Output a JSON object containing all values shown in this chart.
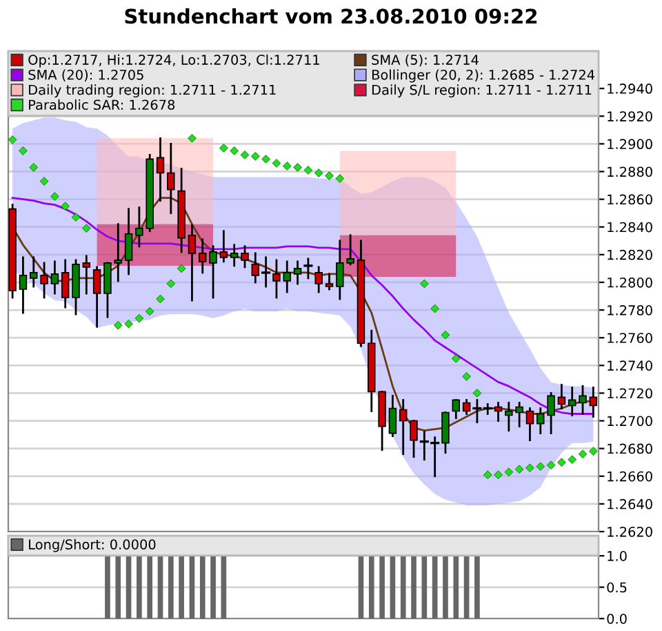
{
  "chart_data": [
    {
      "type": "candlestick",
      "title": "Stundenchart vom 23.08.2010 09:22",
      "categories": [
        null,
        null,
        null,
        null,
        null,
        null,
        null,
        null,
        null,
        null,
        null,
        null,
        null,
        null,
        null,
        null,
        null,
        null,
        null,
        null,
        null,
        null,
        null,
        null,
        null,
        null,
        null,
        null,
        null,
        null,
        null,
        null,
        null,
        null,
        null,
        null,
        null,
        null,
        null,
        null,
        null,
        null,
        null,
        null,
        null,
        null,
        null,
        null,
        null,
        null,
        null,
        null,
        null,
        null,
        null,
        null
      ],
      "series": [
        {
          "type": "candlestick",
          "name": "Op:1.2717, Hi:1.2724, Lo:1.2703, Cl:1.2711",
          "color": "#cc0000",
          "colors": [
            "#cc0000",
            "#008000",
            "#008000",
            "#cc0000",
            "#008000",
            "#cc0000",
            "#008000",
            "#cc0000",
            "#cc0000",
            "#008000",
            "#008000",
            "#008000",
            "#008000",
            "#008000",
            "#cc0000",
            "#cc0000",
            "#cc0000",
            "#cc0000",
            "#cc0000",
            "#008000",
            "#cc0000",
            "#008000",
            "#cc0000",
            "#cc0000",
            "#000000",
            "#cc0000",
            "#008000",
            "#008000",
            "#000000",
            "#cc0000",
            "#cc0000",
            "#008000",
            "#008000",
            "#cc0000",
            "#cc0000",
            "#cc0000",
            "#008000",
            "#cc0000",
            "#cc0000",
            "#000000",
            "#000000",
            "#008000",
            "#008000",
            "#cc0000",
            "#000000",
            "#000000",
            "#cc0000",
            "#008000",
            "#008000",
            "#cc0000",
            "#008000",
            "#008000",
            "#cc0000",
            "#008000",
            "#008000",
            "#cc0000"
          ],
          "ohlc": [
            [
              1.2853,
              1.2856,
              1.2789,
              1.2794
            ],
            [
              1.2795,
              1.2818,
              1.2778,
              1.2805
            ],
            [
              1.2803,
              1.2818,
              1.2797,
              1.2807
            ],
            [
              1.2805,
              1.2814,
              1.2789,
              1.2799
            ],
            [
              1.2799,
              1.2815,
              1.2792,
              1.2806
            ],
            [
              1.2807,
              1.2816,
              1.2782,
              1.2789
            ],
            [
              1.2789,
              1.2816,
              1.2777,
              1.2813
            ],
            [
              1.2814,
              1.2819,
              1.2792,
              1.2811
            ],
            [
              1.2809,
              1.2811,
              1.2768,
              1.2792
            ],
            [
              1.2792,
              1.2814,
              1.2775,
              1.2814
            ],
            [
              1.2814,
              1.2842,
              1.2801,
              1.2816
            ],
            [
              1.2816,
              1.2853,
              1.2806,
              1.2835
            ],
            [
              1.2834,
              1.2854,
              1.2826,
              1.2839
            ],
            [
              1.2839,
              1.2892,
              1.2837,
              1.2889
            ],
            [
              1.289,
              1.2904,
              1.2859,
              1.2879
            ],
            [
              1.2879,
              1.29,
              1.285,
              1.2867
            ],
            [
              1.2866,
              1.2882,
              1.2822,
              1.2832
            ],
            [
              1.2834,
              1.2841,
              1.2787,
              1.2821
            ],
            [
              1.2821,
              1.2831,
              1.2807,
              1.2815
            ],
            [
              1.2814,
              1.2826,
              1.2789,
              1.2822
            ],
            [
              1.2822,
              1.2837,
              1.2815,
              1.2818
            ],
            [
              1.2818,
              1.2827,
              1.2812,
              1.2821
            ],
            [
              1.2821,
              1.2826,
              1.2811,
              1.2816
            ],
            [
              1.2813,
              1.2821,
              1.28,
              1.2805
            ],
            [
              1.2807,
              1.2818,
              1.2797,
              1.2807
            ],
            [
              1.2806,
              1.2816,
              1.2789,
              1.2801
            ],
            [
              1.2801,
              1.2815,
              1.2793,
              1.2807
            ],
            [
              1.2806,
              1.2815,
              1.2799,
              1.281
            ],
            [
              1.2812,
              1.2817,
              1.2803,
              1.2812
            ],
            [
              1.2807,
              1.2811,
              1.2793,
              1.2799
            ],
            [
              1.2799,
              1.2806,
              1.2795,
              1.2797
            ],
            [
              1.2797,
              1.283,
              1.2788,
              1.2814
            ],
            [
              1.2814,
              1.2834,
              1.2813,
              1.2817
            ],
            [
              1.2816,
              1.283,
              1.2754,
              1.2756
            ],
            [
              1.2756,
              1.2765,
              1.2707,
              1.2721
            ],
            [
              1.2721,
              1.2721,
              1.2679,
              1.2696
            ],
            [
              1.2691,
              1.2718,
              1.2689,
              1.2709
            ],
            [
              1.2708,
              1.2715,
              1.2676,
              1.27
            ],
            [
              1.27,
              1.27,
              1.2674,
              1.2686
            ],
            [
              1.2685,
              1.2692,
              1.2672,
              1.2685
            ],
            [
              1.2684,
              1.2688,
              1.266,
              1.2684
            ],
            [
              1.2684,
              1.2706,
              1.2677,
              1.2706
            ],
            [
              1.2707,
              1.2715,
              1.2702,
              1.2715
            ],
            [
              1.2713,
              1.2715,
              1.2705,
              1.2707
            ],
            [
              1.2709,
              1.2715,
              1.2699,
              1.2709
            ],
            [
              1.2709,
              1.2712,
              1.2705,
              1.2709
            ],
            [
              1.271,
              1.2713,
              1.27,
              1.2707
            ],
            [
              1.2704,
              1.2713,
              1.2693,
              1.2707
            ],
            [
              1.2706,
              1.2713,
              1.2696,
              1.271
            ],
            [
              1.2707,
              1.2709,
              1.2686,
              1.2698
            ],
            [
              1.2698,
              1.2709,
              1.2691,
              1.2705
            ],
            [
              1.2704,
              1.272,
              1.2691,
              1.2718
            ],
            [
              1.2717,
              1.2726,
              1.2709,
              1.2712
            ],
            [
              1.2711,
              1.2724,
              1.2704,
              1.2715
            ],
            [
              1.2713,
              1.2725,
              1.2705,
              1.2718
            ],
            [
              1.2717,
              1.2724,
              1.2703,
              1.2711
            ]
          ]
        },
        {
          "type": "line",
          "name": "SMA (5): 1.2714",
          "color": "#6b3a12",
          "values": [
            1.284,
            1.2827,
            1.2817,
            1.2807,
            1.2801,
            1.2801,
            1.2803,
            1.2803,
            1.2803,
            1.2807,
            1.2812,
            1.2824,
            1.2836,
            1.2851,
            1.2861,
            1.2861,
            1.2857,
            1.2842,
            1.2829,
            1.2822,
            1.282,
            1.2819,
            1.2817,
            1.2814,
            1.2811,
            1.2807,
            1.2807,
            1.2807,
            1.2807,
            1.2805,
            1.2806,
            1.2806,
            1.2805,
            1.2793,
            1.2778,
            1.2752,
            1.2725,
            1.2705,
            1.2695,
            1.2693,
            1.2694,
            1.2695,
            1.2699,
            1.2703,
            1.2707,
            1.2709,
            1.2709,
            1.2708,
            1.2707,
            1.2705,
            1.2705,
            1.2707,
            1.2709,
            1.2712,
            1.2714,
            1.2714
          ]
        },
        {
          "type": "line",
          "name": "SMA (20): 1.2705",
          "color": "#9900ee",
          "values": [
            1.2861,
            1.286,
            1.2859,
            1.2857,
            1.2856,
            1.2853,
            1.2849,
            1.2844,
            1.2838,
            1.2833,
            1.283,
            1.2829,
            1.2828,
            1.2828,
            1.2828,
            1.2828,
            1.2827,
            1.2826,
            1.2825,
            1.2824,
            1.2824,
            1.2824,
            1.2825,
            1.2825,
            1.2825,
            1.2825,
            1.2826,
            1.2826,
            1.2826,
            1.2825,
            1.2825,
            1.2824,
            1.2824,
            1.2815,
            1.2805,
            1.2798,
            1.279,
            1.2781,
            1.2773,
            1.2766,
            1.2758,
            1.2753,
            1.2748,
            1.2743,
            1.2738,
            1.2733,
            1.2728,
            1.2725,
            1.2721,
            1.2717,
            1.2712,
            1.2708,
            1.2706,
            1.2705,
            1.2705,
            1.2705
          ]
        },
        {
          "type": "line",
          "name": "Bollinger (20, 2): 1.2685 - 1.2724",
          "color": "#aaaaff",
          "values": [
            null,
            null,
            null,
            null,
            null,
            null,
            null,
            null,
            null,
            null,
            null,
            null,
            null,
            null,
            null,
            null,
            null,
            null,
            null,
            null,
            null,
            null,
            null,
            null,
            null,
            null,
            null,
            null,
            null,
            null,
            null,
            null,
            null,
            null,
            null,
            null,
            null,
            null,
            null,
            null,
            null,
            null,
            null,
            null,
            null,
            null,
            null,
            null,
            null,
            null,
            null,
            null,
            null,
            null,
            null,
            null
          ],
          "upper": [
            1.2911,
            1.2915,
            1.2917,
            1.2919,
            1.2919,
            1.2917,
            1.2916,
            1.2912,
            1.2911,
            1.2906,
            1.2898,
            1.2891,
            1.2891,
            1.2887,
            1.2887,
            1.2885,
            1.2882,
            1.288,
            1.2878,
            1.2876,
            1.2876,
            1.2876,
            1.2876,
            1.2876,
            1.2876,
            1.2876,
            1.2876,
            1.2876,
            1.2876,
            1.2875,
            1.2875,
            1.2875,
            1.2869,
            1.2864,
            1.2865,
            1.2869,
            1.2873,
            1.2876,
            1.2876,
            1.2876,
            1.2873,
            1.2868,
            1.2858,
            1.2846,
            1.2833,
            1.2815,
            1.2796,
            1.2778,
            1.2765,
            1.2752,
            1.2738,
            1.2728,
            1.2726,
            1.2725,
            1.2725,
            1.2724
          ],
          "lower": [
            1.2809,
            1.2804,
            1.2799,
            1.2792,
            1.2787,
            1.2786,
            1.278,
            1.2775,
            1.2767,
            1.2769,
            1.277,
            1.2771,
            1.2772,
            1.2773,
            1.2776,
            1.2777,
            1.2777,
            1.2777,
            1.2776,
            1.2774,
            1.2776,
            1.2779,
            1.2781,
            1.2779,
            1.2779,
            1.2779,
            1.2781,
            1.2779,
            1.2779,
            1.2778,
            1.2777,
            1.2776,
            1.2768,
            1.2752,
            1.2728,
            1.2709,
            1.2689,
            1.2674,
            1.2662,
            1.2654,
            1.2647,
            1.2643,
            1.2641,
            1.2639,
            1.2639,
            1.2639,
            1.264,
            1.2641,
            1.2642,
            1.2646,
            1.2652,
            1.2666,
            1.2677,
            1.2684,
            1.2684,
            1.2685
          ]
        },
        {
          "type": "line",
          "name": "Daily trading region: 1.2711 - 1.2711",
          "color": "#ffb8b8",
          "values": [
            null,
            null,
            null,
            null,
            null,
            null,
            null,
            null,
            null,
            null,
            null,
            null,
            null,
            null,
            null,
            null,
            null,
            null,
            null,
            null,
            null,
            null,
            null,
            null,
            null,
            null,
            null,
            null,
            null,
            null,
            null,
            null,
            null,
            null,
            null,
            null,
            null,
            null,
            null,
            null,
            null,
            null,
            null,
            null,
            null,
            null,
            null,
            null,
            null,
            null,
            null,
            null,
            null,
            null,
            null,
            null
          ],
          "upper": [
            null,
            null,
            null,
            null,
            null,
            null,
            null,
            null,
            1.2904,
            1.2904,
            1.2904,
            1.2904,
            1.2904,
            1.2904,
            1.2904,
            1.2904,
            1.2904,
            1.2904,
            1.2904,
            1.2904,
            null,
            null,
            null,
            null,
            null,
            null,
            null,
            null,
            null,
            null,
            null,
            1.2895,
            1.2895,
            1.2895,
            1.2895,
            1.2895,
            1.2895,
            1.2895,
            1.2895,
            1.2895,
            1.2895,
            1.2895,
            1.2895,
            null,
            null,
            null,
            null,
            null,
            null,
            null,
            null,
            null,
            null,
            null,
            null,
            null
          ],
          "lower": [
            null,
            null,
            null,
            null,
            null,
            null,
            null,
            null,
            1.2842,
            1.2842,
            1.2842,
            1.2842,
            1.2842,
            1.2842,
            1.2842,
            1.2842,
            1.2842,
            1.2842,
            1.2842,
            1.2842,
            null,
            null,
            null,
            null,
            null,
            null,
            null,
            null,
            null,
            null,
            null,
            1.2834,
            1.2834,
            1.2834,
            1.2834,
            1.2834,
            1.2834,
            1.2834,
            1.2834,
            1.2834,
            1.2834,
            1.2834,
            1.2834,
            null,
            null,
            null,
            null,
            null,
            null,
            null,
            null,
            null,
            null,
            null,
            null,
            null
          ]
        },
        {
          "type": "line",
          "name": "Daily S/L region: 1.2711 - 1.2711",
          "color": "#dc1240",
          "values": [
            null,
            null,
            null,
            null,
            null,
            null,
            null,
            null,
            null,
            null,
            null,
            null,
            null,
            null,
            null,
            null,
            null,
            null,
            null,
            null,
            null,
            null,
            null,
            null,
            null,
            null,
            null,
            null,
            null,
            null,
            null,
            null,
            null,
            null,
            null,
            null,
            null,
            null,
            null,
            null,
            null,
            null,
            null,
            null,
            null,
            null,
            null,
            null,
            null,
            null,
            null,
            null,
            null,
            null,
            null,
            null
          ],
          "upper": [
            null,
            null,
            null,
            null,
            null,
            null,
            null,
            null,
            1.2842,
            1.2842,
            1.2842,
            1.2842,
            1.2842,
            1.2842,
            1.2842,
            1.2842,
            1.2842,
            1.2842,
            1.2842,
            1.2842,
            null,
            null,
            null,
            null,
            null,
            null,
            null,
            null,
            null,
            null,
            null,
            1.2834,
            1.2834,
            1.2834,
            1.2834,
            1.2834,
            1.2834,
            1.2834,
            1.2834,
            1.2834,
            1.2834,
            1.2834,
            1.2834,
            null,
            null,
            null,
            null,
            null,
            null,
            null,
            null,
            null,
            null,
            null,
            null,
            null
          ],
          "lower": [
            null,
            null,
            null,
            null,
            null,
            null,
            null,
            null,
            1.2812,
            1.2812,
            1.2812,
            1.2812,
            1.2812,
            1.2812,
            1.2812,
            1.2812,
            1.2812,
            1.2812,
            1.2812,
            1.2812,
            null,
            null,
            null,
            null,
            null,
            null,
            null,
            null,
            null,
            null,
            null,
            1.2804,
            1.2804,
            1.2804,
            1.2804,
            1.2804,
            1.2804,
            1.2804,
            1.2804,
            1.2804,
            1.2804,
            1.2804,
            1.2804,
            null,
            null,
            null,
            null,
            null,
            null,
            null,
            null,
            null,
            null,
            null,
            null,
            null
          ]
        },
        {
          "type": "scatter",
          "name": "Parabolic SAR: 1.2678",
          "color": "#22dd22",
          "marker": "diamond",
          "values": [
            1.2903,
            1.2895,
            1.2883,
            1.2873,
            1.2862,
            1.2855,
            1.2847,
            1.2839,
            null,
            null,
            1.2769,
            1.277,
            1.2774,
            1.2779,
            1.2788,
            1.2799,
            1.281,
            1.2904,
            null,
            null,
            1.2897,
            1.2895,
            1.2892,
            1.2891,
            1.2889,
            1.2886,
            1.2884,
            1.2883,
            1.2881,
            1.2879,
            1.2877,
            1.2875,
            null,
            null,
            null,
            null,
            null,
            null,
            null,
            1.2799,
            1.2781,
            1.2762,
            1.2745,
            1.2732,
            1.272,
            1.2661,
            1.2661,
            1.2663,
            1.2665,
            1.2666,
            1.2667,
            1.2668,
            1.267,
            1.2672,
            1.2676,
            1.2678
          ]
        }
      ],
      "ylim": [
        1.262,
        1.2967
      ],
      "yticks": [
        {
          "value": 1.262,
          "label": "1.2620"
        },
        {
          "value": 1.264,
          "label": "1.2640"
        },
        {
          "value": 1.266,
          "label": "1.2660"
        },
        {
          "value": 1.268,
          "label": "1.2680"
        },
        {
          "value": 1.27,
          "label": "1.2700"
        },
        {
          "value": 1.272,
          "label": "1.2720"
        },
        {
          "value": 1.274,
          "label": "1.2740"
        },
        {
          "value": 1.276,
          "label": "1.2760"
        },
        {
          "value": 1.278,
          "label": "1.2780"
        },
        {
          "value": 1.28,
          "label": "1.2800"
        },
        {
          "value": 1.282,
          "label": "1.2820"
        },
        {
          "value": 1.284,
          "label": "1.2840"
        },
        {
          "value": 1.286,
          "label": "1.2860"
        },
        {
          "value": 1.288,
          "label": "1.2880"
        },
        {
          "value": 1.29,
          "label": "1.2900"
        },
        {
          "value": 1.292,
          "label": "1.2920"
        },
        {
          "value": 1.294,
          "label": "1.2940"
        }
      ],
      "grid": "y",
      "legend": "top",
      "tick_labels": "y"
    },
    {
      "type": "bar",
      "categories": [
        null,
        null,
        null,
        null,
        null,
        null,
        null,
        null,
        null,
        null,
        null,
        null,
        null,
        null,
        null,
        null,
        null,
        null,
        null,
        null,
        null,
        null,
        null,
        null,
        null,
        null,
        null,
        null,
        null,
        null,
        null,
        null,
        null,
        null,
        null,
        null,
        null,
        null,
        null,
        null,
        null,
        null,
        null,
        null,
        null,
        null,
        null,
        null,
        null,
        null,
        null,
        null,
        null,
        null,
        null,
        null
      ],
      "series": [
        {
          "name": "Long/Short: 0.0000",
          "color": "#666666",
          "values": [
            0,
            0,
            0,
            0,
            0,
            0,
            0,
            0,
            0,
            1,
            1,
            1,
            1,
            1,
            1,
            1,
            1,
            1,
            1,
            1,
            1,
            0,
            0,
            0,
            0,
            0,
            0,
            0,
            0,
            0,
            0,
            0,
            0,
            1,
            1,
            1,
            1,
            1,
            1,
            1,
            1,
            1,
            1,
            1,
            1,
            0,
            0,
            0,
            0,
            0,
            0,
            0,
            0,
            0,
            0,
            0
          ]
        }
      ],
      "ylim": [
        0,
        1.32
      ],
      "yticks": [
        {
          "value": 0,
          "label": "0.0"
        },
        {
          "value": 0.5,
          "label": "0.5"
        },
        {
          "value": 1,
          "label": "1.0"
        }
      ],
      "grid": "y",
      "legend": "top",
      "tick_labels": "y"
    }
  ]
}
